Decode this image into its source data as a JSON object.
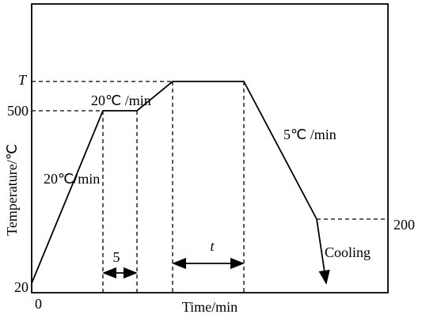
{
  "axes": {
    "x_label": "Time/min",
    "y_label": "Temperature/℃",
    "x_origin": "0"
  },
  "levels": {
    "top": "T",
    "hold": "500",
    "end": "200",
    "start": "20"
  },
  "rates": {
    "heat_1": "20℃/min",
    "heat_2": "20℃ /min",
    "cool": "5℃ /min",
    "final": "Cooling"
  },
  "intervals": {
    "first_hold": "5",
    "second_hold": "t"
  }
}
